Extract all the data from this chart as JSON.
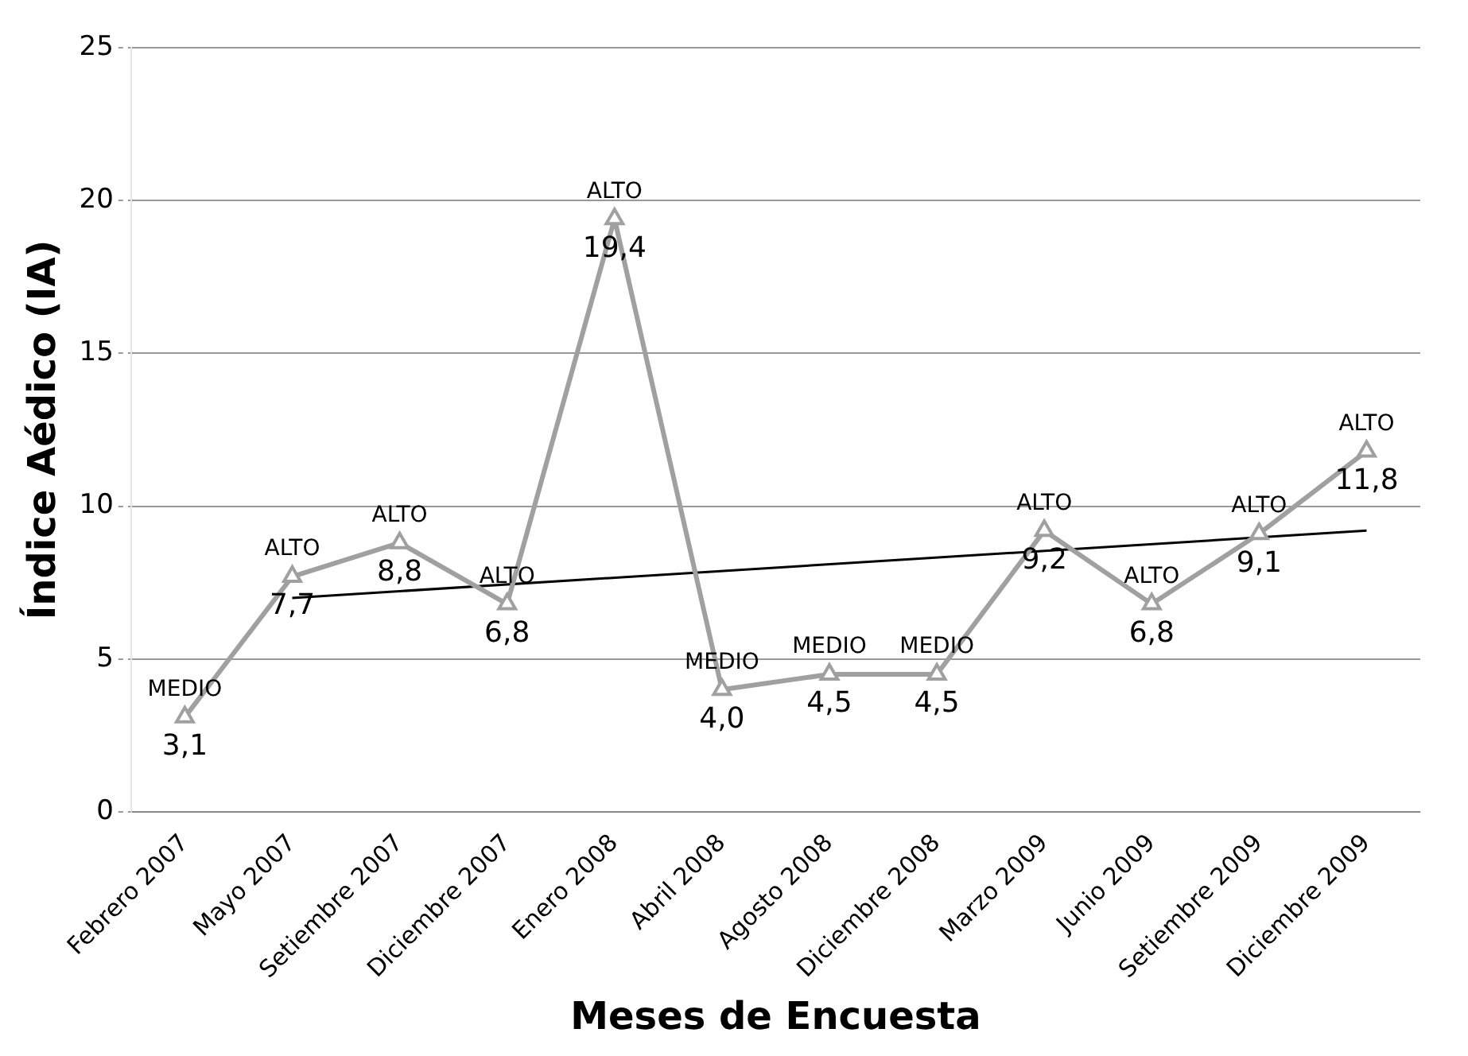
{
  "chart_data": {
    "type": "line",
    "xlabel": "Meses de Encuesta",
    "ylabel": "Índice Aédico (IA)",
    "categories": [
      "Febrero 2007",
      "Mayo 2007",
      "Setiembre 2007",
      "Diciembre 2007",
      "Enero 2008",
      "Abril 2008",
      "Agosto 2008",
      "Diciembre 2008",
      "Marzo 2009",
      "Junio 2009",
      "Setiembre 2009",
      "Diciembre 2009"
    ],
    "series": [
      {
        "color": "#a0a0a0",
        "marker": "triangle",
        "values": [
          3.1,
          7.7,
          8.8,
          6.8,
          19.4,
          4.0,
          4.5,
          4.5,
          9.2,
          6.8,
          9.1,
          11.8
        ],
        "value_labels": [
          "3,1",
          "7,7",
          "8,8",
          "6,8",
          "19,4",
          "4,0",
          "4,5",
          "4,5",
          "9,2",
          "6,8",
          "9,1",
          "11,8"
        ]
      },
      {
        "type": "line",
        "color": "#000000",
        "marker": "none",
        "x": [
          "Mayo 2007",
          "Diciembre 2009"
        ],
        "values": [
          7.0,
          9.2
        ]
      }
    ],
    "annotations": [
      {
        "text": "MEDIO",
        "x": "Febrero 2007",
        "y": 3.1
      },
      {
        "text": "ALTO",
        "x": "Mayo 2007",
        "y": 7.7
      },
      {
        "text": "ALTO",
        "x": "Setiembre 2007",
        "y": 8.8
      },
      {
        "text": "ALTO",
        "x": "Diciembre 2007",
        "y": 6.8
      },
      {
        "text": "ALTO",
        "x": "Enero 2008",
        "y": 19.4
      },
      {
        "text": "MEDIO",
        "x": "Abril 2008",
        "y": 4.0
      },
      {
        "text": "MEDIO",
        "x": "Agosto 2008",
        "y": 4.5
      },
      {
        "text": "MEDIO",
        "x": "Diciembre 2008",
        "y": 4.5
      },
      {
        "text": "ALTO",
        "x": "Marzo 2009",
        "y": 9.2
      },
      {
        "text": "ALTO",
        "x": "Junio 2009",
        "y": 6.8
      },
      {
        "text": "ALTO",
        "x": "Setiembre 2009",
        "y": 9.1
      },
      {
        "text": "ALTO",
        "x": "Diciembre 2009",
        "y": 11.8
      }
    ],
    "ylim": [
      0,
      25
    ],
    "yticks": [
      0,
      5,
      10,
      15,
      20,
      25
    ],
    "grid": "y",
    "legend": false
  }
}
